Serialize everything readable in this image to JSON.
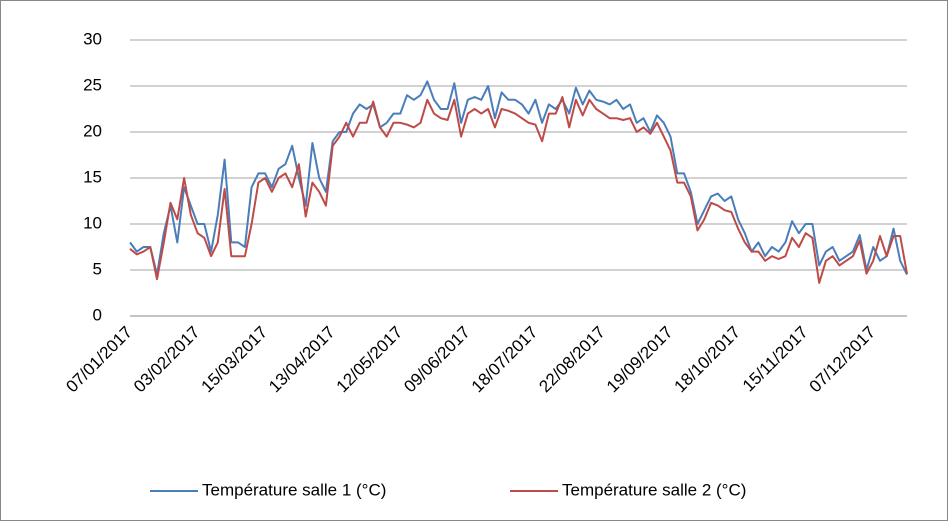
{
  "chart_data": {
    "type": "line",
    "categories": [
      "07/01/2017",
      null,
      null,
      null,
      null,
      null,
      null,
      null,
      null,
      null,
      "03/02/2017",
      null,
      null,
      null,
      null,
      null,
      null,
      null,
      null,
      null,
      "15/03/2017",
      null,
      null,
      null,
      null,
      null,
      null,
      null,
      null,
      null,
      "13/04/2017",
      null,
      null,
      null,
      null,
      null,
      null,
      null,
      null,
      null,
      "12/05/2017",
      null,
      null,
      null,
      null,
      null,
      null,
      null,
      null,
      null,
      "09/06/2017",
      null,
      null,
      null,
      null,
      null,
      null,
      null,
      null,
      null,
      "18/07/2017",
      null,
      null,
      null,
      null,
      null,
      null,
      null,
      null,
      null,
      "22/08/2017",
      null,
      null,
      null,
      null,
      null,
      null,
      null,
      null,
      null,
      "19/09/2017",
      null,
      null,
      null,
      null,
      null,
      null,
      null,
      null,
      null,
      "18/10/2017",
      null,
      null,
      null,
      null,
      null,
      null,
      null,
      null,
      null,
      "15/11/2017",
      null,
      null,
      null,
      null,
      null,
      null,
      null,
      null,
      null,
      "07/12/2017",
      null,
      null,
      null,
      null,
      null
    ],
    "series": [
      {
        "name": "Température salle 1 (°C)",
        "color": "#4a7ebb",
        "values": [
          8,
          7,
          7.5,
          7.5,
          4.5,
          9,
          12,
          8,
          14,
          12,
          10,
          10,
          7,
          11,
          17,
          8,
          8,
          7.5,
          14,
          15.5,
          15.5,
          14,
          16,
          16.5,
          18.5,
          15,
          12,
          18.8,
          15,
          13.5,
          19,
          20,
          20,
          22,
          23,
          22.5,
          23,
          20.5,
          21,
          22,
          22,
          24,
          23.5,
          24,
          25.5,
          23.5,
          22.5,
          22.5,
          25.3,
          21,
          23.5,
          23.8,
          23.5,
          25,
          21.5,
          24.3,
          23.5,
          23.5,
          23,
          22,
          23.5,
          21,
          23,
          22.5,
          23.5,
          22,
          24.8,
          23,
          24.5,
          23.5,
          23.3,
          23,
          23.5,
          22.5,
          23,
          21,
          21.5,
          20,
          21.8,
          21,
          19.5,
          15.5,
          15.5,
          13.5,
          10,
          11.5,
          13,
          13.3,
          12.5,
          13,
          10.5,
          9,
          7,
          8,
          6.5,
          7.5,
          7,
          8,
          10.3,
          9,
          10,
          10,
          5.5,
          7,
          7.5,
          6,
          6.5,
          7,
          8.8,
          5,
          7.5,
          6,
          6.5,
          9.5,
          6,
          4.5
        ]
      },
      {
        "name": "Température salle 2 (°C)",
        "color": "#be4b48",
        "values": [
          7.3,
          6.7,
          7,
          7.5,
          4,
          8,
          12.3,
          10.5,
          15,
          11,
          9,
          8.5,
          6.5,
          8,
          13.8,
          6.5,
          6.5,
          6.5,
          10,
          14.5,
          15,
          13.5,
          15,
          15.5,
          14,
          16.5,
          10.8,
          14.5,
          13.5,
          12,
          18.5,
          19.5,
          21,
          19.5,
          21,
          21,
          23.3,
          20.5,
          19.5,
          21,
          21,
          20.8,
          20.5,
          21,
          23.5,
          22,
          21.5,
          21.3,
          23.5,
          19.5,
          22,
          22.5,
          22,
          22.5,
          20.5,
          22.5,
          22.3,
          22,
          21.5,
          21,
          20.8,
          19,
          22,
          22,
          23.8,
          20.5,
          23.5,
          21.8,
          23.5,
          22.5,
          22,
          21.5,
          21.5,
          21.3,
          21.5,
          20,
          20.5,
          19.8,
          21,
          19.5,
          18,
          14.5,
          14.5,
          13,
          9.3,
          10.5,
          12.3,
          12,
          11.5,
          11.3,
          9.5,
          8,
          7,
          7,
          6,
          6.5,
          6.2,
          6.5,
          8.5,
          7.5,
          9,
          8.5,
          3.6,
          6,
          6.5,
          5.5,
          6,
          6.5,
          8.2,
          4.6,
          6,
          8.7,
          6.5,
          8.7,
          8.7,
          4.6
        ]
      }
    ],
    "ylim": [
      0,
      30
    ],
    "yticks": [
      0,
      5,
      10,
      15,
      20,
      25,
      30
    ],
    "grid": true,
    "legend": "bottom"
  }
}
